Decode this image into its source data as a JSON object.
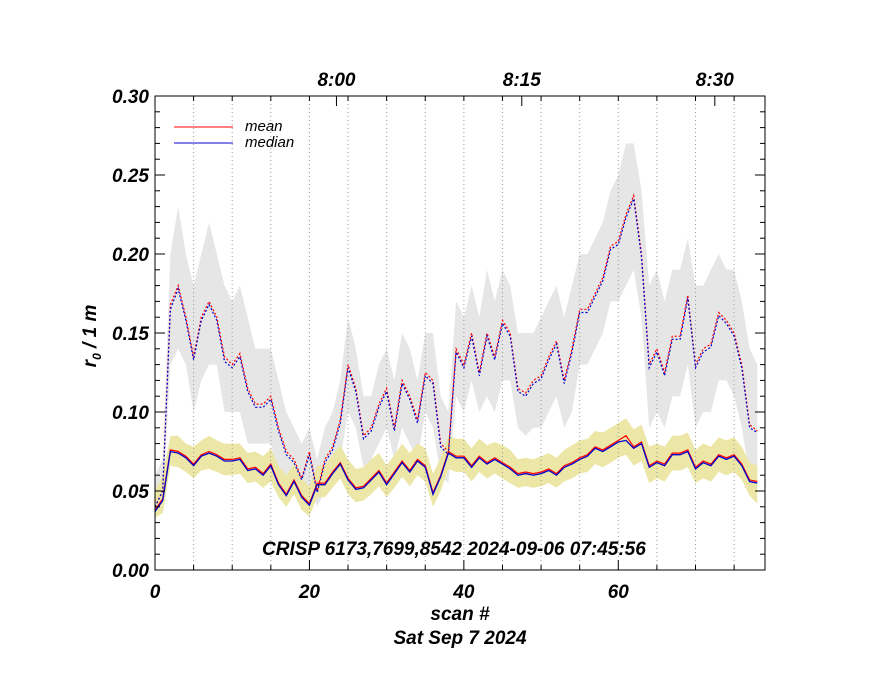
{
  "chart_data": {
    "type": "line",
    "annotation": "CRISP 6173,7699,8542 2024-09-06 07:45:56",
    "xlabel": "scan #",
    "date_label": "Sat Sep  7 2024",
    "ylabel_main": "r",
    "ylabel_sub": "0",
    "ylabel_rest": " / 1 m",
    "xlim": [
      0,
      79
    ],
    "ylim": [
      0,
      0.3
    ],
    "x_ticks": [
      {
        "value": 0,
        "label": "0"
      },
      {
        "value": 20,
        "label": "20"
      },
      {
        "value": 40,
        "label": "40"
      },
      {
        "value": 60,
        "label": "60"
      }
    ],
    "y_ticks": [
      {
        "value": 0.0,
        "label": "0.00"
      },
      {
        "value": 0.05,
        "label": "0.05"
      },
      {
        "value": 0.1,
        "label": "0.10"
      },
      {
        "value": 0.15,
        "label": "0.15"
      },
      {
        "value": 0.2,
        "label": "0.20"
      },
      {
        "value": 0.25,
        "label": "0.25"
      },
      {
        "value": 0.3,
        "label": "0.30"
      }
    ],
    "time_ticks": [
      {
        "value": 23.5,
        "label": "8:00"
      },
      {
        "value": 47.5,
        "label": "8:15"
      },
      {
        "value": 72.5,
        "label": "8:30"
      }
    ],
    "time_gridlines": [
      5,
      10,
      15,
      20,
      25,
      30,
      35,
      40,
      45,
      50,
      55,
      60,
      65,
      70,
      75
    ],
    "colors": {
      "mean": "#ff0000",
      "median": "#0000cc",
      "upper_band": "#e6e6e6",
      "lower_band": "#ece7a6"
    },
    "legend": [
      {
        "name": "mean",
        "color": "#ff0000"
      },
      {
        "name": "median",
        "color": "#0000cc"
      }
    ],
    "upper_mean": [
      0.04,
      0.05,
      0.168,
      0.18,
      0.16,
      0.135,
      0.16,
      0.17,
      0.16,
      0.135,
      0.13,
      0.137,
      0.115,
      0.105,
      0.105,
      0.11,
      0.09,
      0.075,
      0.07,
      0.058,
      0.075,
      0.05,
      0.07,
      0.078,
      0.095,
      0.13,
      0.115,
      0.085,
      0.09,
      0.105,
      0.115,
      0.09,
      0.12,
      0.11,
      0.095,
      0.125,
      0.12,
      0.08,
      0.075,
      0.14,
      0.13,
      0.15,
      0.125,
      0.15,
      0.135,
      0.158,
      0.15,
      0.115,
      0.112,
      0.12,
      0.123,
      0.135,
      0.145,
      0.12,
      0.14,
      0.165,
      0.165,
      0.175,
      0.185,
      0.205,
      0.208,
      0.225,
      0.237,
      0.2,
      0.13,
      0.14,
      0.125,
      0.148,
      0.148,
      0.174,
      0.13,
      0.14,
      0.143,
      0.163,
      0.158,
      0.15,
      0.13,
      0.092,
      0.088
    ],
    "upper_median": [
      0.04,
      0.05,
      0.165,
      0.178,
      0.158,
      0.133,
      0.158,
      0.168,
      0.158,
      0.132,
      0.128,
      0.135,
      0.113,
      0.103,
      0.103,
      0.108,
      0.088,
      0.073,
      0.068,
      0.057,
      0.073,
      0.049,
      0.068,
      0.076,
      0.093,
      0.128,
      0.113,
      0.083,
      0.088,
      0.103,
      0.113,
      0.088,
      0.118,
      0.108,
      0.093,
      0.123,
      0.118,
      0.078,
      0.073,
      0.138,
      0.128,
      0.148,
      0.123,
      0.148,
      0.133,
      0.156,
      0.148,
      0.113,
      0.11,
      0.118,
      0.121,
      0.133,
      0.143,
      0.118,
      0.138,
      0.163,
      0.163,
      0.173,
      0.183,
      0.203,
      0.206,
      0.223,
      0.235,
      0.198,
      0.128,
      0.138,
      0.123,
      0.146,
      0.146,
      0.172,
      0.128,
      0.138,
      0.141,
      0.161,
      0.156,
      0.148,
      0.128,
      0.09,
      0.087
    ],
    "upper_band_hi": [
      0.06,
      0.07,
      0.2,
      0.23,
      0.2,
      0.18,
      0.2,
      0.22,
      0.2,
      0.18,
      0.17,
      0.18,
      0.16,
      0.14,
      0.14,
      0.14,
      0.12,
      0.1,
      0.09,
      0.08,
      0.09,
      0.07,
      0.09,
      0.1,
      0.12,
      0.16,
      0.14,
      0.11,
      0.11,
      0.13,
      0.14,
      0.12,
      0.15,
      0.14,
      0.12,
      0.15,
      0.15,
      0.11,
      0.1,
      0.17,
      0.16,
      0.18,
      0.16,
      0.19,
      0.17,
      0.19,
      0.18,
      0.15,
      0.15,
      0.15,
      0.16,
      0.17,
      0.18,
      0.16,
      0.18,
      0.2,
      0.2,
      0.21,
      0.22,
      0.24,
      0.25,
      0.27,
      0.27,
      0.24,
      0.18,
      0.19,
      0.17,
      0.19,
      0.19,
      0.21,
      0.18,
      0.18,
      0.19,
      0.2,
      0.19,
      0.19,
      0.17,
      0.14,
      0.13
    ],
    "upper_band_lo": [
      0.035,
      0.04,
      0.13,
      0.14,
      0.13,
      0.1,
      0.12,
      0.13,
      0.13,
      0.1,
      0.1,
      0.1,
      0.08,
      0.08,
      0.08,
      0.08,
      0.06,
      0.05,
      0.05,
      0.045,
      0.055,
      0.04,
      0.05,
      0.055,
      0.07,
      0.1,
      0.09,
      0.065,
      0.07,
      0.08,
      0.09,
      0.07,
      0.09,
      0.08,
      0.07,
      0.1,
      0.09,
      0.06,
      0.055,
      0.11,
      0.1,
      0.12,
      0.1,
      0.11,
      0.1,
      0.12,
      0.12,
      0.09,
      0.085,
      0.09,
      0.09,
      0.1,
      0.11,
      0.09,
      0.1,
      0.13,
      0.13,
      0.14,
      0.15,
      0.17,
      0.17,
      0.18,
      0.19,
      0.16,
      0.09,
      0.1,
      0.09,
      0.11,
      0.11,
      0.13,
      0.09,
      0.1,
      0.1,
      0.12,
      0.12,
      0.11,
      0.09,
      0.06,
      0.055
    ],
    "lower_mean": [
      0.038,
      0.045,
      0.076,
      0.075,
      0.072,
      0.067,
      0.073,
      0.075,
      0.073,
      0.07,
      0.07,
      0.071,
      0.064,
      0.065,
      0.061,
      0.067,
      0.055,
      0.048,
      0.057,
      0.047,
      0.042,
      0.055,
      0.055,
      0.062,
      0.068,
      0.058,
      0.052,
      0.053,
      0.058,
      0.063,
      0.055,
      0.062,
      0.069,
      0.063,
      0.07,
      0.066,
      0.049,
      0.06,
      0.075,
      0.072,
      0.072,
      0.066,
      0.072,
      0.068,
      0.071,
      0.068,
      0.065,
      0.061,
      0.062,
      0.061,
      0.062,
      0.064,
      0.061,
      0.066,
      0.068,
      0.071,
      0.073,
      0.078,
      0.076,
      0.079,
      0.082,
      0.085,
      0.078,
      0.081,
      0.066,
      0.069,
      0.067,
      0.074,
      0.074,
      0.076,
      0.065,
      0.069,
      0.067,
      0.073,
      0.071,
      0.073,
      0.067,
      0.057,
      0.056
    ],
    "lower_median": [
      0.037,
      0.044,
      0.075,
      0.074,
      0.071,
      0.066,
      0.072,
      0.074,
      0.072,
      0.069,
      0.069,
      0.07,
      0.063,
      0.064,
      0.06,
      0.066,
      0.054,
      0.047,
      0.056,
      0.046,
      0.041,
      0.054,
      0.054,
      0.061,
      0.067,
      0.057,
      0.051,
      0.052,
      0.057,
      0.062,
      0.054,
      0.061,
      0.068,
      0.062,
      0.069,
      0.065,
      0.048,
      0.059,
      0.074,
      0.071,
      0.071,
      0.065,
      0.071,
      0.067,
      0.07,
      0.067,
      0.064,
      0.06,
      0.061,
      0.06,
      0.061,
      0.063,
      0.06,
      0.065,
      0.067,
      0.07,
      0.072,
      0.077,
      0.075,
      0.078,
      0.081,
      0.082,
      0.077,
      0.08,
      0.065,
      0.068,
      0.066,
      0.073,
      0.073,
      0.075,
      0.064,
      0.068,
      0.066,
      0.072,
      0.07,
      0.072,
      0.066,
      0.056,
      0.055
    ],
    "lower_band_hi": [
      0.05,
      0.06,
      0.085,
      0.085,
      0.08,
      0.078,
      0.082,
      0.085,
      0.082,
      0.08,
      0.08,
      0.08,
      0.074,
      0.075,
      0.072,
      0.077,
      0.066,
      0.06,
      0.067,
      0.058,
      0.053,
      0.066,
      0.066,
      0.073,
      0.079,
      0.07,
      0.064,
      0.065,
      0.07,
      0.074,
      0.066,
      0.073,
      0.08,
      0.074,
      0.08,
      0.077,
      0.061,
      0.071,
      0.085,
      0.083,
      0.083,
      0.077,
      0.083,
      0.079,
      0.081,
      0.079,
      0.076,
      0.07,
      0.071,
      0.07,
      0.072,
      0.074,
      0.071,
      0.076,
      0.079,
      0.082,
      0.083,
      0.088,
      0.087,
      0.09,
      0.093,
      0.096,
      0.089,
      0.092,
      0.078,
      0.08,
      0.078,
      0.085,
      0.085,
      0.087,
      0.076,
      0.08,
      0.078,
      0.084,
      0.082,
      0.084,
      0.078,
      0.068,
      0.066
    ],
    "lower_band_lo": [
      0.033,
      0.036,
      0.066,
      0.065,
      0.062,
      0.058,
      0.063,
      0.064,
      0.062,
      0.06,
      0.06,
      0.061,
      0.055,
      0.056,
      0.052,
      0.056,
      0.046,
      0.04,
      0.048,
      0.038,
      0.034,
      0.046,
      0.046,
      0.052,
      0.058,
      0.048,
      0.043,
      0.044,
      0.048,
      0.053,
      0.046,
      0.052,
      0.059,
      0.053,
      0.06,
      0.056,
      0.04,
      0.05,
      0.064,
      0.062,
      0.062,
      0.056,
      0.062,
      0.058,
      0.061,
      0.058,
      0.055,
      0.052,
      0.053,
      0.052,
      0.053,
      0.055,
      0.052,
      0.056,
      0.058,
      0.061,
      0.062,
      0.067,
      0.065,
      0.068,
      0.071,
      0.073,
      0.066,
      0.069,
      0.055,
      0.058,
      0.056,
      0.063,
      0.063,
      0.065,
      0.055,
      0.058,
      0.056,
      0.062,
      0.06,
      0.062,
      0.057,
      0.047,
      0.042
    ]
  }
}
